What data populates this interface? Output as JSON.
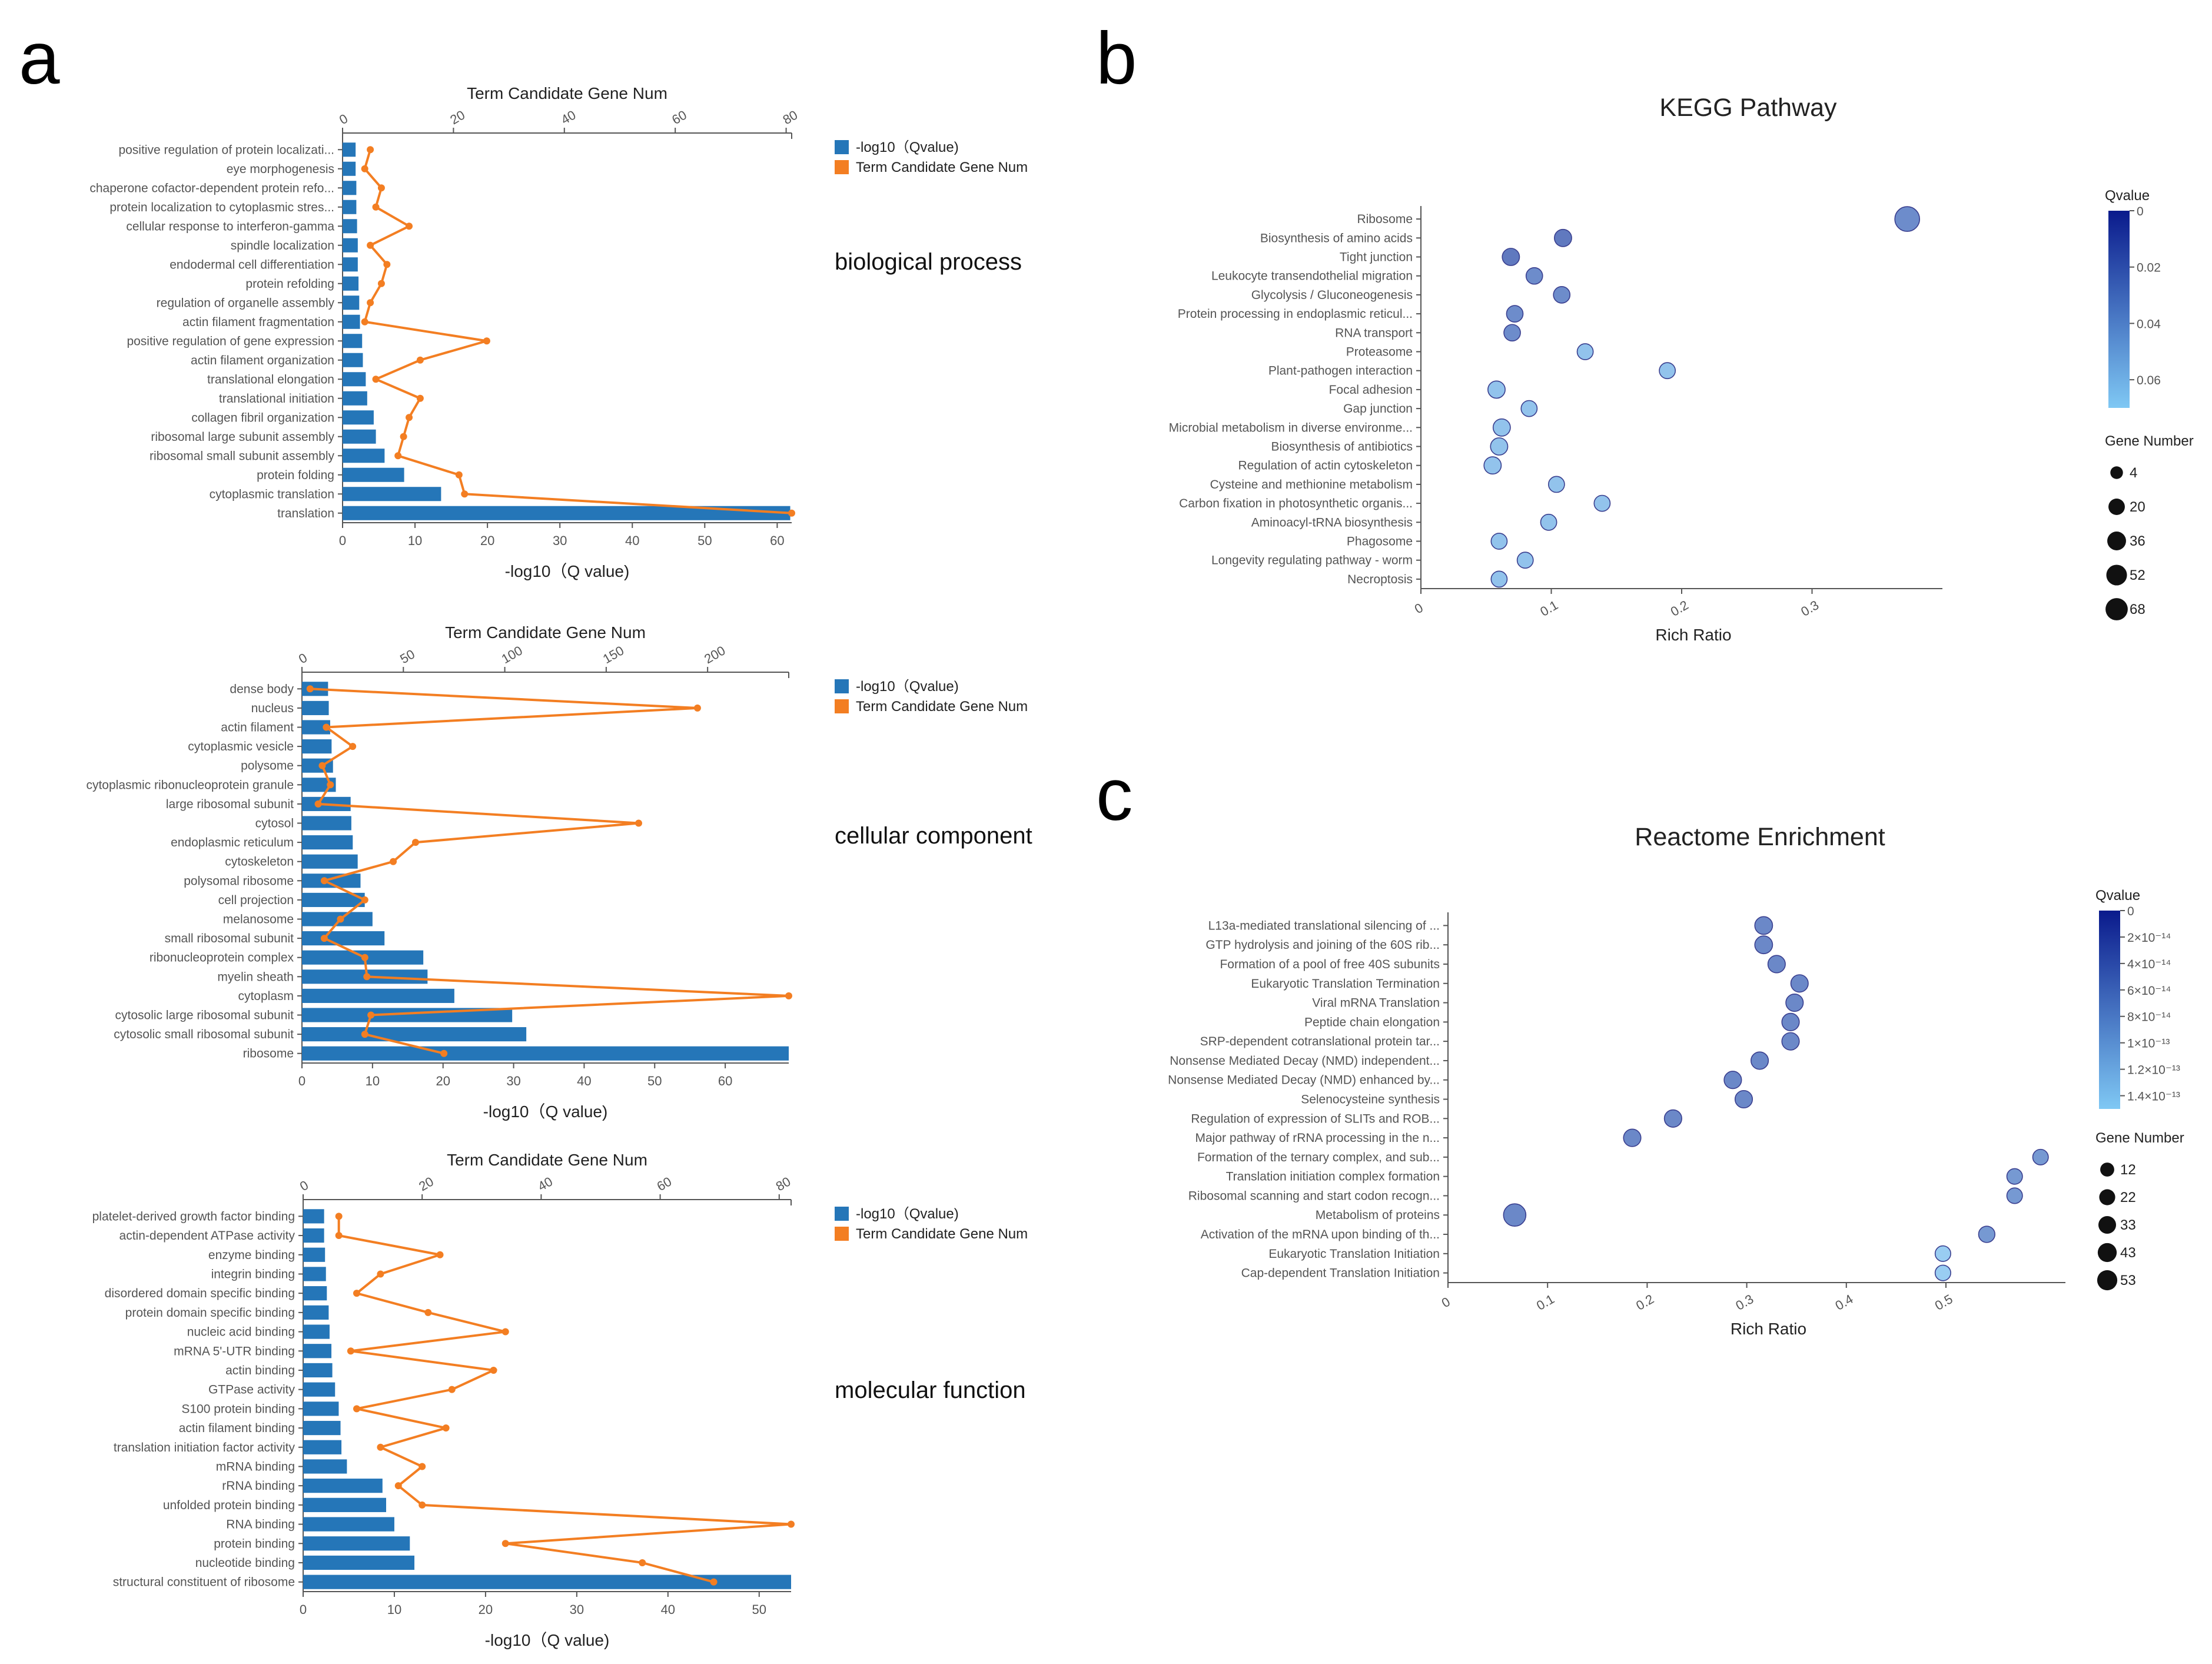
{
  "panels": {
    "a": "a",
    "b": "b",
    "c": "c"
  },
  "colors": {
    "bar": "#2576b8",
    "line": "#f37e22",
    "qvalue_dark": "#0a1a8c",
    "qvalue_light": "#7fc8f4"
  },
  "go_legend": {
    "bar_label": "-log10（Qvalue)",
    "line_label": "Term Candidate Gene Num"
  },
  "chart_data": [
    {
      "id": "go_bp",
      "type": "bar",
      "section_label": "biological process",
      "top_axis_label": "Term Candidate Gene Num",
      "xlabel": "-log10（Q value)",
      "xlim": [
        0,
        62
      ],
      "xticks": [
        0,
        10,
        20,
        30,
        40,
        50,
        60
      ],
      "top_xlim": [
        0,
        81
      ],
      "top_ticks": [
        0,
        20,
        40,
        60,
        80
      ],
      "categories": [
        "positive regulation of protein localizati...",
        "eye morphogenesis",
        "chaperone cofactor-dependent protein refo...",
        "protein localization to cytoplasmic stres...",
        "cellular response to interferon-gamma",
        "spindle localization",
        "endodermal cell differentiation",
        "protein refolding",
        "regulation of organelle assembly",
        "actin filament fragmentation",
        "positive regulation of gene expression",
        "actin filament organization",
        "translational elongation",
        "translational initiation",
        "collagen fibril organization",
        "ribosomal large subunit assembly",
        "ribosomal small subunit assembly",
        "protein folding",
        "cytoplasmic translation",
        "translation"
      ],
      "series": [
        {
          "name": "-log10（Qvalue)",
          "kind": "bar",
          "values": [
            1.8,
            1.8,
            1.9,
            1.9,
            2.0,
            2.1,
            2.1,
            2.2,
            2.3,
            2.4,
            2.7,
            2.8,
            3.2,
            3.4,
            4.3,
            4.6,
            5.8,
            8.5,
            13.6,
            61.8
          ]
        },
        {
          "name": "Term Candidate Gene Num",
          "kind": "line",
          "values": [
            5,
            4,
            7,
            6,
            12,
            5,
            8,
            7,
            5,
            4,
            26,
            14,
            6,
            14,
            12,
            11,
            10,
            21,
            22,
            81
          ]
        }
      ]
    },
    {
      "id": "go_cc",
      "type": "bar",
      "section_label": "cellular component",
      "top_axis_label": "Term Candidate Gene Num",
      "xlabel": "-log10（Q value)",
      "xlim": [
        0,
        69
      ],
      "xticks": [
        0,
        10,
        20,
        30,
        40,
        50,
        60
      ],
      "top_xlim": [
        0,
        240
      ],
      "top_ticks": [
        0,
        50,
        100,
        150,
        200
      ],
      "categories": [
        "dense body",
        "nucleus",
        "actin filament",
        "cytoplasmic vesicle",
        "polysome",
        "cytoplasmic ribonucleoprotein granule",
        "large ribosomal subunit",
        "cytosol",
        "endoplasmic reticulum",
        "cytoskeleton",
        "polysomal ribosome",
        "cell projection",
        "melanosome",
        "small ribosomal subunit",
        "ribonucleoprotein complex",
        "myelin sheath",
        "cytoplasm",
        "cytosolic large ribosomal subunit",
        "cytosolic small ribosomal subunit",
        "ribosome"
      ],
      "series": [
        {
          "name": "-log10（Qvalue)",
          "kind": "bar",
          "values": [
            3.7,
            3.8,
            4.0,
            4.2,
            4.4,
            4.8,
            6.9,
            7.0,
            7.2,
            7.9,
            8.3,
            8.9,
            10.0,
            11.7,
            17.2,
            17.8,
            21.6,
            29.8,
            31.8,
            69.0
          ]
        },
        {
          "name": "Term Candidate Gene Num",
          "kind": "line",
          "values": [
            4,
            195,
            12,
            25,
            10,
            14,
            8,
            166,
            56,
            45,
            11,
            31,
            19,
            11,
            31,
            32,
            240,
            34,
            31,
            70
          ]
        }
      ]
    },
    {
      "id": "go_mf",
      "type": "bar",
      "section_label": "molecular function",
      "top_axis_label": "Term Candidate Gene Num",
      "xlabel": "-log10（Q value)",
      "xlim": [
        0,
        53.5
      ],
      "xticks": [
        0,
        10,
        20,
        30,
        40,
        50
      ],
      "top_xlim": [
        0,
        82
      ],
      "top_ticks": [
        0,
        20,
        40,
        60,
        80
      ],
      "categories": [
        "platelet-derived growth factor binding",
        "actin-dependent ATPase activity",
        "enzyme binding",
        "integrin binding",
        "disordered domain specific binding",
        "protein domain specific binding",
        "nucleic acid binding",
        "mRNA 5'-UTR binding",
        "actin binding",
        "GTPase activity",
        "S100 protein binding",
        "actin filament binding",
        "translation initiation factor activity",
        "mRNA binding",
        "rRNA binding",
        "unfolded protein binding",
        "RNA binding",
        "protein binding",
        "nucleotide binding",
        "structural constituent of ribosome"
      ],
      "series": [
        {
          "name": "-log10（Qvalue)",
          "kind": "bar",
          "values": [
            2.3,
            2.3,
            2.4,
            2.5,
            2.6,
            2.8,
            2.9,
            3.1,
            3.2,
            3.5,
            3.9,
            4.1,
            4.2,
            4.8,
            8.7,
            9.1,
            10.0,
            11.7,
            12.2,
            53.5
          ]
        },
        {
          "name": "Term Candidate Gene Num",
          "kind": "line",
          "values": [
            6,
            6,
            23,
            13,
            9,
            21,
            34,
            8,
            32,
            25,
            9,
            24,
            13,
            20,
            16,
            20,
            82,
            34,
            57,
            69
          ]
        }
      ]
    },
    {
      "id": "kegg",
      "type": "scatter",
      "title": "KEGG Pathway",
      "xlabel": "Rich Ratio",
      "xlim": [
        0,
        0.4
      ],
      "xticks": [
        0,
        0.1,
        0.2,
        0.3
      ],
      "size_legend_title": "Gene Number",
      "size_legend": [
        4,
        20,
        36,
        52,
        68
      ],
      "color_legend_title": "Qvalue",
      "color_range": [
        0,
        0.07
      ],
      "color_ticks": [
        {
          "v": 0,
          "t": "0"
        },
        {
          "v": 0.02,
          "t": "0.02"
        },
        {
          "v": 0.04,
          "t": "0.04"
        },
        {
          "v": 0.06,
          "t": "0.06"
        }
      ],
      "categories": [
        "Ribosome",
        "Biosynthesis of amino acids",
        "Tight junction",
        "Leukocyte transendothelial migration",
        "Glycolysis / Gluconeogenesis",
        "Protein processing in endoplasmic reticul...",
        "RNA transport",
        "Proteasome",
        "Plant-pathogen interaction",
        "Focal adhesion",
        "Gap junction",
        "Microbial metabolism in diverse environme...",
        "Biosynthesis of antibiotics",
        "Regulation of actin cytoskeleton",
        "Cysteine and methionine metabolism",
        "Carbon fixation in photosynthetic organis...",
        "Aminoacyl-tRNA biosynthesis",
        "Phagosome",
        "Longevity regulating pathway - worm",
        "Necroptosis"
      ],
      "x": [
        0.373,
        0.109,
        0.069,
        0.087,
        0.108,
        0.072,
        0.07,
        0.126,
        0.189,
        0.058,
        0.083,
        0.062,
        0.06,
        0.055,
        0.104,
        0.139,
        0.098,
        0.06,
        0.08,
        0.06
      ],
      "q": [
        0.03,
        0.02,
        0.02,
        0.03,
        0.03,
        0.03,
        0.03,
        0.06,
        0.06,
        0.06,
        0.06,
        0.06,
        0.06,
        0.06,
        0.06,
        0.06,
        0.06,
        0.06,
        0.06,
        0.06
      ],
      "gene_number": [
        68,
        15,
        15,
        12,
        12,
        12,
        12,
        10,
        10,
        15,
        10,
        15,
        15,
        15,
        10,
        10,
        10,
        10,
        10,
        10
      ]
    },
    {
      "id": "reactome",
      "type": "scatter",
      "title": "Reactome Enrichment",
      "xlabel": "Rich Ratio",
      "xlim": [
        0,
        0.62
      ],
      "xticks": [
        0,
        0.1,
        0.2,
        0.3,
        0.4,
        0.5
      ],
      "size_legend_title": "Gene Number",
      "size_legend": [
        12,
        22,
        33,
        43,
        53
      ],
      "color_legend_title": "Qvalue",
      "color_range": [
        0,
        1.5e-13
      ],
      "color_ticks": [
        {
          "v": 0,
          "t": "0"
        },
        {
          "v": 2e-14,
          "t": "2×10⁻¹⁴"
        },
        {
          "v": 4e-14,
          "t": "4×10⁻¹⁴"
        },
        {
          "v": 6e-14,
          "t": "6×10⁻¹⁴"
        },
        {
          "v": 8e-14,
          "t": "8×10⁻¹⁴"
        },
        {
          "v": 1e-13,
          "t": "1×10⁻¹³"
        },
        {
          "v": 1.2e-13,
          "t": "1.2×10⁻¹³"
        },
        {
          "v": 1.4e-13,
          "t": "1.4×10⁻¹³"
        }
      ],
      "categories": [
        "L13a-mediated translational silencing of ...",
        "GTP hydrolysis and joining of the 60S rib...",
        "Formation of a pool of free 40S subunits",
        "Eukaryotic Translation Termination",
        "Viral mRNA Translation",
        "Peptide chain elongation",
        "SRP-dependent cotranslational protein tar...",
        "Nonsense Mediated Decay (NMD) independent...",
        "Nonsense Mediated Decay (NMD) enhanced by...",
        "Selenocysteine synthesis",
        "Regulation of expression of SLITs and ROB...",
        "Major pathway of rRNA processing in the n...",
        "Formation of the ternary complex, and sub...",
        "Translation initiation complex formation",
        "Ribosomal scanning and start codon recogn...",
        "Metabolism of proteins",
        "Activation of the mRNA upon binding of th...",
        "Eukaryotic Translation Initiation",
        "Cap-dependent Translation Initiation"
      ],
      "x": [
        0.317,
        0.317,
        0.33,
        0.353,
        0.348,
        0.344,
        0.344,
        0.313,
        0.286,
        0.297,
        0.226,
        0.185,
        0.595,
        0.569,
        0.569,
        0.067,
        0.541,
        0.497,
        0.497
      ],
      "q": [
        6e-14,
        6e-14,
        6e-14,
        6e-14,
        6e-14,
        6e-14,
        6e-14,
        6e-14,
        6e-14,
        6e-14,
        6e-14,
        6e-14,
        8e-14,
        8e-14,
        8e-14,
        6e-14,
        8e-14,
        1.4e-13,
        1.4e-13
      ],
      "gene_number": [
        22,
        22,
        20,
        20,
        20,
        20,
        20,
        20,
        20,
        20,
        20,
        20,
        12,
        12,
        12,
        53,
        15,
        12,
        12
      ]
    }
  ]
}
